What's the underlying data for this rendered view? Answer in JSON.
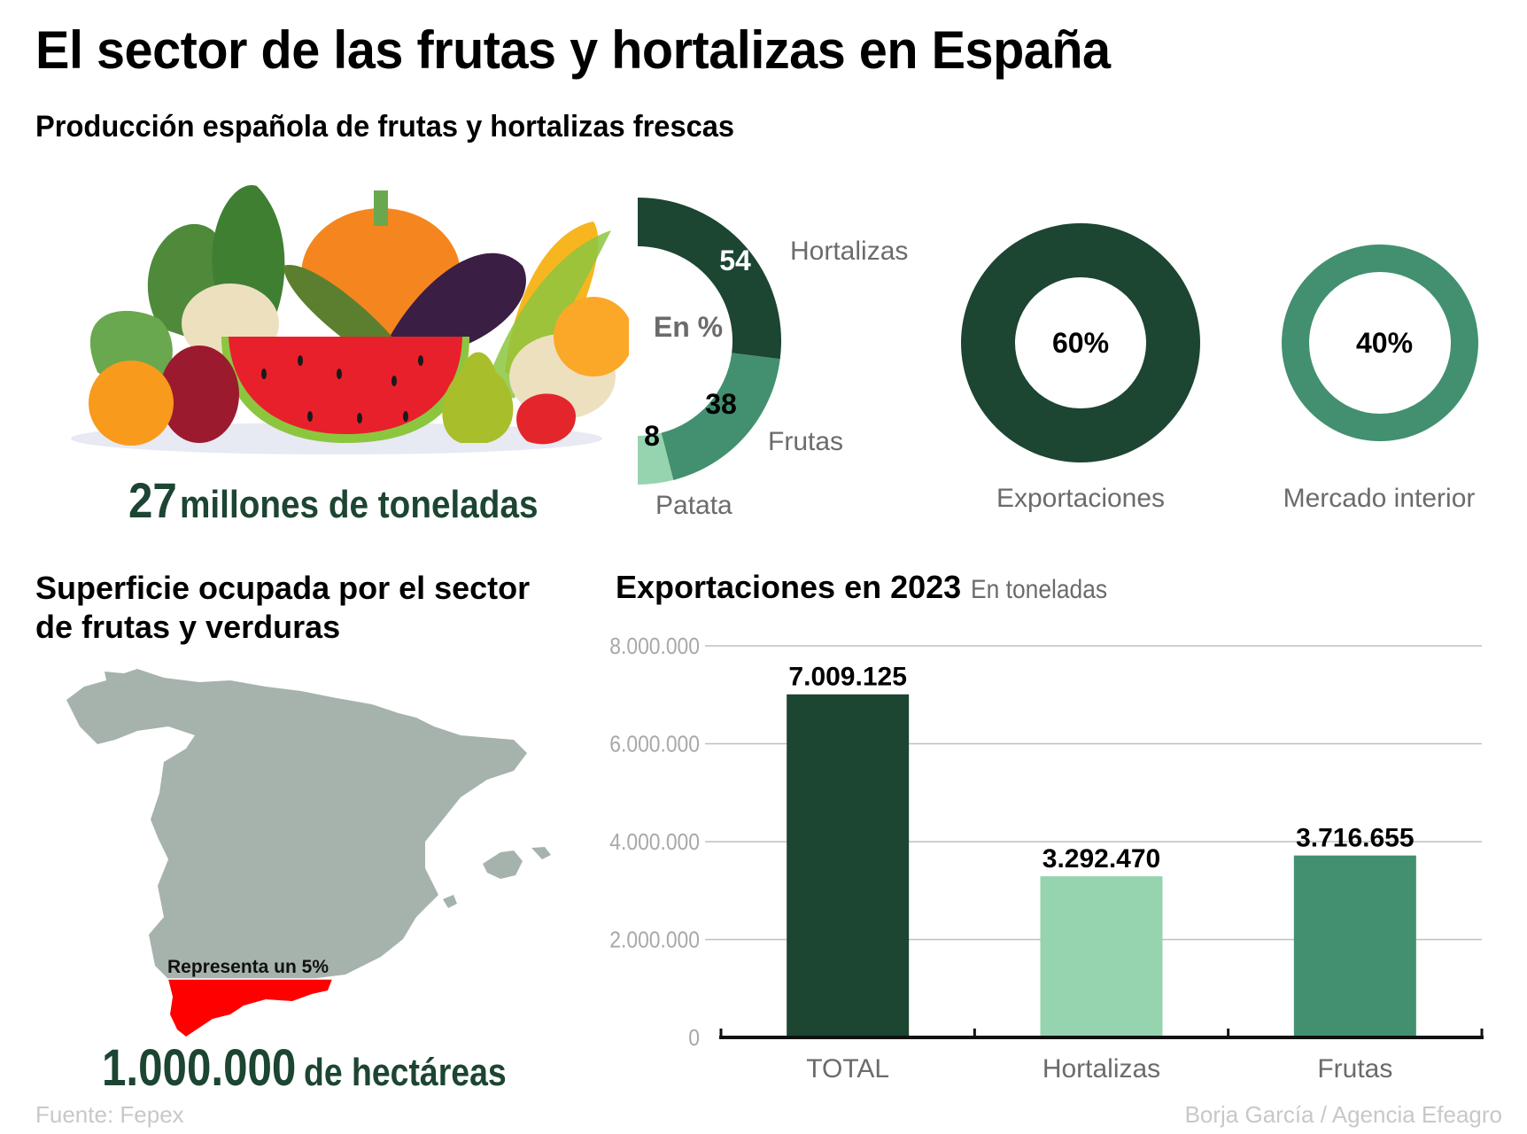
{
  "header": {
    "title": "El sector de las frutas y hortalizas en España",
    "subtitle": "Producción española de frutas y hortalizas frescas"
  },
  "production": {
    "illustration": "fruits-and-vegetables-illustration",
    "total_number": "27",
    "total_unit": "millones de toneladas"
  },
  "colors": {
    "dark_green": "#1c4532",
    "mid_green": "#42906f",
    "light_green": "#96d4b0",
    "map_grey": "#a6b3ac",
    "highlight_red": "#ff0000",
    "axis_grey": "#a0a0a0",
    "label_grey": "#6b6b6b",
    "source_grey": "#c8c8c8"
  },
  "map": {
    "title_line1": "Superficie ocupada por el sector",
    "title_line2": "de frutas y verduras",
    "annotation": "Representa un 5%",
    "total_number": "1.000.000",
    "total_unit": "de hectáreas"
  },
  "footer": {
    "source": "Fuente: Fepex",
    "credit": "Borja García / Agencia Efeagro"
  },
  "chart_data": [
    {
      "type": "pie",
      "variant": "half-donut",
      "title": "En %",
      "labels": [
        "Hortalizas",
        "Frutas",
        "Patata"
      ],
      "values": [
        54,
        38,
        8
      ],
      "colors": [
        "#1c4532",
        "#42906f",
        "#96d4b0"
      ],
      "legend": "right"
    },
    {
      "type": "pie",
      "variant": "donut",
      "labels": [
        "Exportaciones",
        "Mercado interior"
      ],
      "values": [
        60,
        40
      ],
      "value_labels": [
        "60%",
        "40%"
      ],
      "colors": [
        "#1c4532",
        "#42906f"
      ]
    },
    {
      "type": "bar",
      "title": "Exportaciones en 2023",
      "subtitle": "En toneladas",
      "categories": [
        "TOTAL",
        "Hortalizas",
        "Frutas"
      ],
      "values": [
        7009125,
        3292470,
        3716655
      ],
      "value_labels": [
        "7.009.125",
        "3.292.470",
        "3.716.655"
      ],
      "colors": [
        "#1c4532",
        "#96d4b0",
        "#42906f"
      ],
      "xlabel": "",
      "ylabel": "",
      "ylim": [
        0,
        8000000
      ],
      "yticks": [
        0,
        2000000,
        4000000,
        6000000,
        8000000
      ],
      "ytick_labels": [
        "0",
        "2.000.000",
        "4.000.000",
        "6.000.000",
        "8.000.000"
      ],
      "grid": true
    }
  ]
}
